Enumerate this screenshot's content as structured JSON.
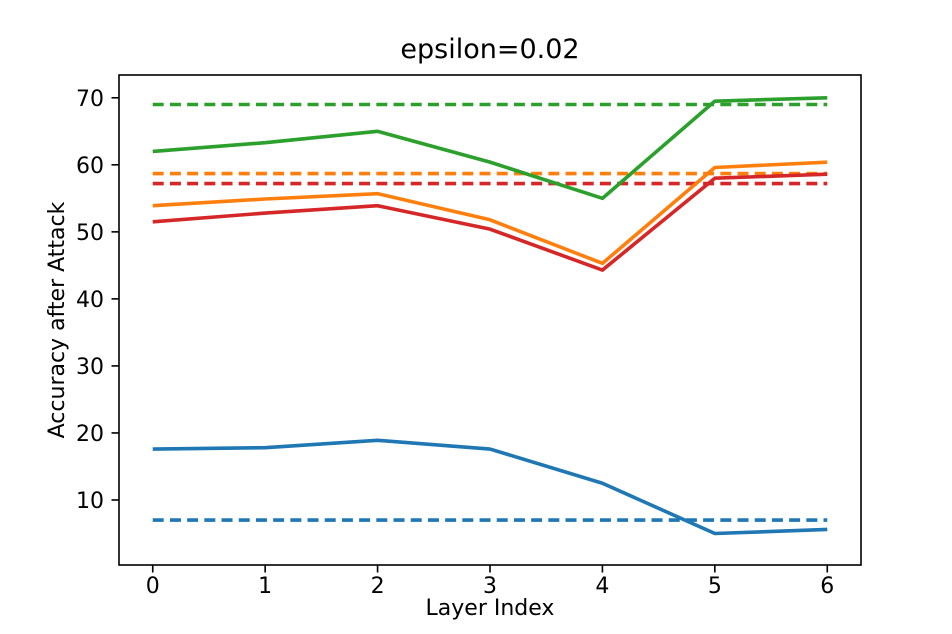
{
  "chart_data": {
    "type": "line",
    "title": "epsilon=0.02",
    "xlabel": "Layer Index",
    "ylabel": "Accuracy after Attack",
    "x": [
      0,
      1,
      2,
      3,
      4,
      5,
      6
    ],
    "xticks": [
      0,
      1,
      2,
      3,
      4,
      5,
      6
    ],
    "yticks": [
      10,
      20,
      30,
      40,
      50,
      60,
      70
    ],
    "xlim": [
      -0.3,
      6.3
    ],
    "ylim": [
      0.3,
      73.4
    ],
    "grid": false,
    "legend": "none",
    "frame": "box",
    "baselines": [
      {
        "name": "blue-dashed-baseline",
        "color": "#1f77b4",
        "style": "dashed",
        "value": 7.0
      },
      {
        "name": "orange-dashed-baseline",
        "color": "#ff7f0e",
        "style": "dashed",
        "value": 58.7
      },
      {
        "name": "green-dashed-baseline",
        "color": "#2ca02c",
        "style": "dashed",
        "value": 69.0
      },
      {
        "name": "red-dashed-baseline",
        "color": "#d62728",
        "style": "dashed",
        "value": 57.2
      }
    ],
    "series": [
      {
        "name": "blue-solid",
        "color": "#1f77b4",
        "style": "solid",
        "values": [
          17.6,
          17.8,
          18.9,
          17.6,
          12.5,
          5.0,
          5.6
        ]
      },
      {
        "name": "orange-solid",
        "color": "#ff7f0e",
        "style": "solid",
        "values": [
          53.9,
          54.9,
          55.7,
          51.8,
          45.3,
          59.6,
          60.4
        ]
      },
      {
        "name": "green-solid",
        "color": "#2ca02c",
        "style": "solid",
        "values": [
          62.0,
          63.3,
          65.0,
          60.4,
          55.0,
          69.5,
          70.0
        ]
      },
      {
        "name": "red-solid",
        "color": "#d62728",
        "style": "solid",
        "values": [
          51.5,
          52.8,
          53.9,
          50.4,
          44.3,
          58.0,
          58.6
        ]
      }
    ]
  },
  "style_tokens": {
    "axis_color": "#000000",
    "background": "#ffffff"
  }
}
